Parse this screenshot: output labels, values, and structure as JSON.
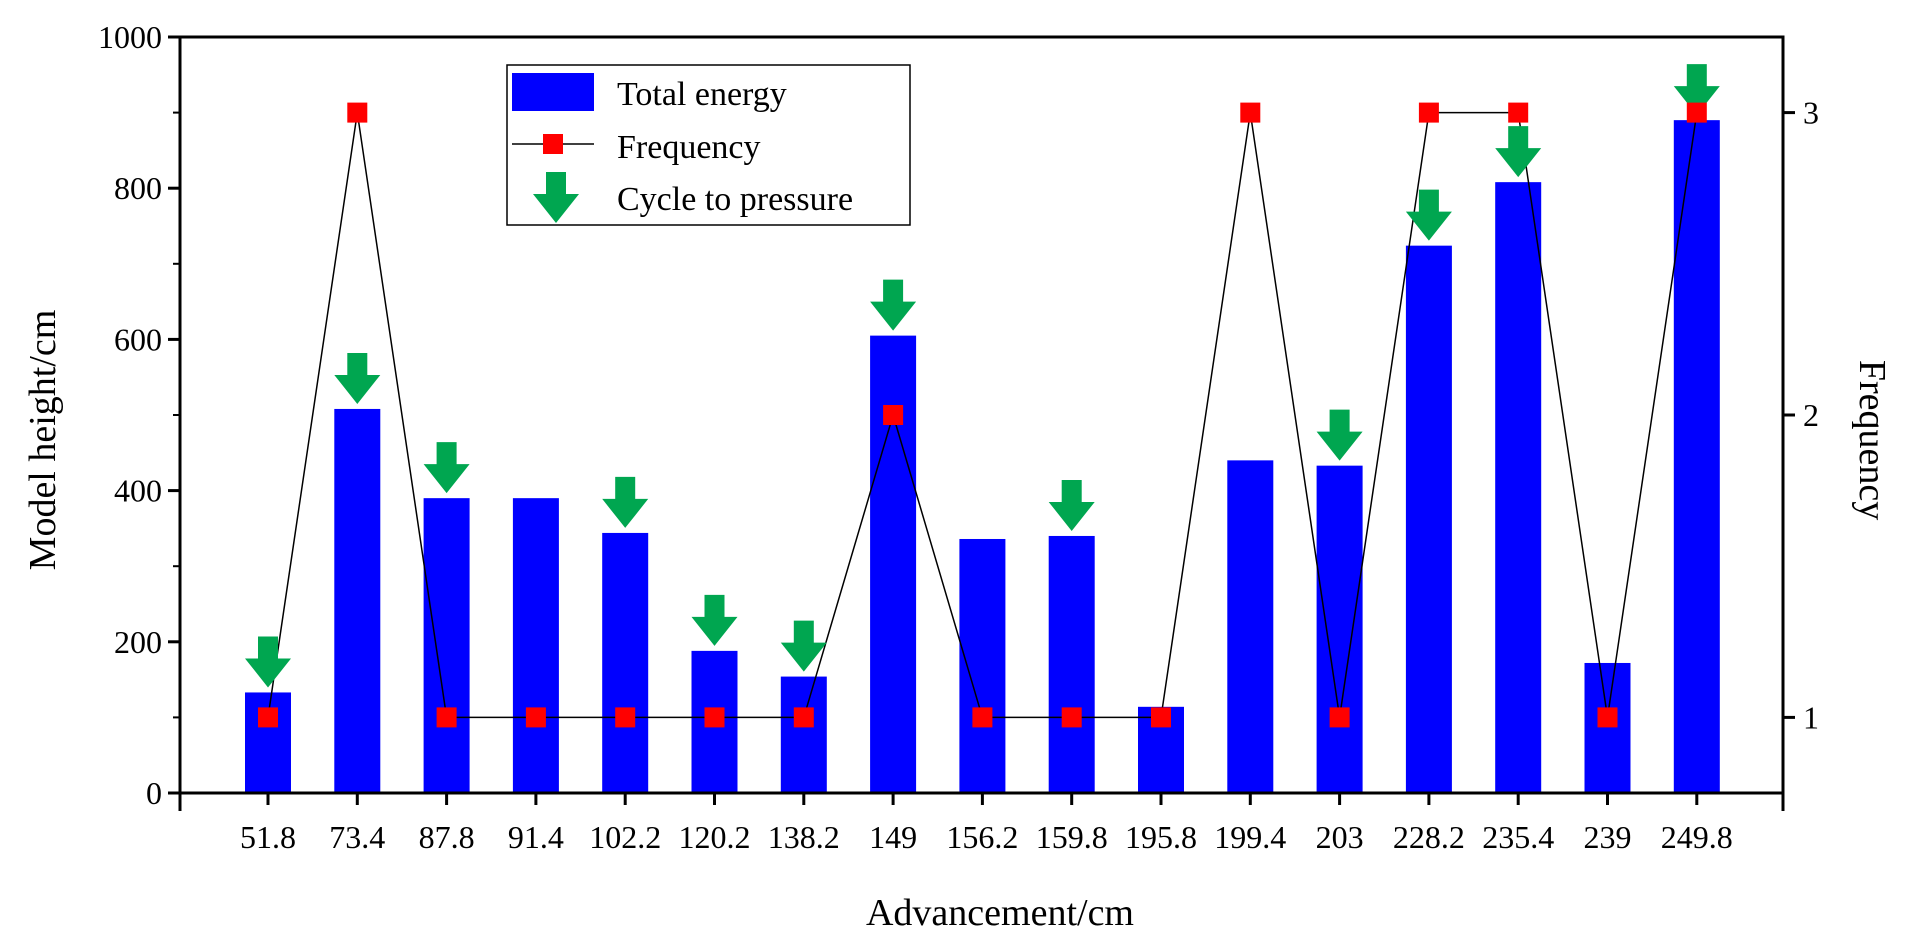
{
  "chart_data": {
    "type": "bar",
    "categories": [
      "51.8",
      "73.4",
      "87.8",
      "91.4",
      "102.2",
      "120.2",
      "138.2",
      "149",
      "156.2",
      "159.8",
      "195.8",
      "199.4",
      "203",
      "228.2",
      "235.4",
      "239",
      "249.8"
    ],
    "xlabel": "Advancement/cm",
    "ylabel": "Model height/cm",
    "y2label": "Frequency",
    "ylim": [
      0,
      1000
    ],
    "yticks": [
      "0",
      "200",
      "400",
      "600",
      "800",
      "1000"
    ],
    "y2lim": [
      0.75,
      3.25
    ],
    "y2ticks": [
      "1",
      "2",
      "3"
    ],
    "legend_position": "top-left-center",
    "series": [
      {
        "name": "Total energy",
        "kind": "bar",
        "axis": "left",
        "color": "#0000ff",
        "values": [
          133,
          508,
          390,
          390,
          344,
          188,
          154,
          605,
          336,
          340,
          114,
          440,
          433,
          724,
          808,
          172,
          890
        ]
      },
      {
        "name": "Frequency",
        "kind": "line",
        "axis": "right",
        "color": "#ff0000",
        "line_color": "#000000",
        "values": [
          1,
          3,
          1,
          1,
          1,
          1,
          1,
          2,
          1,
          1,
          1,
          3,
          1,
          3,
          3,
          1,
          3
        ]
      },
      {
        "name": "Cycle to pressure",
        "kind": "marker",
        "color": "#00a650",
        "categories": [
          "51.8",
          "73.4",
          "87.8",
          "102.2",
          "120.2",
          "138.2",
          "149",
          "159.8",
          "203",
          "228.2",
          "235.4",
          "249.8"
        ]
      }
    ]
  }
}
